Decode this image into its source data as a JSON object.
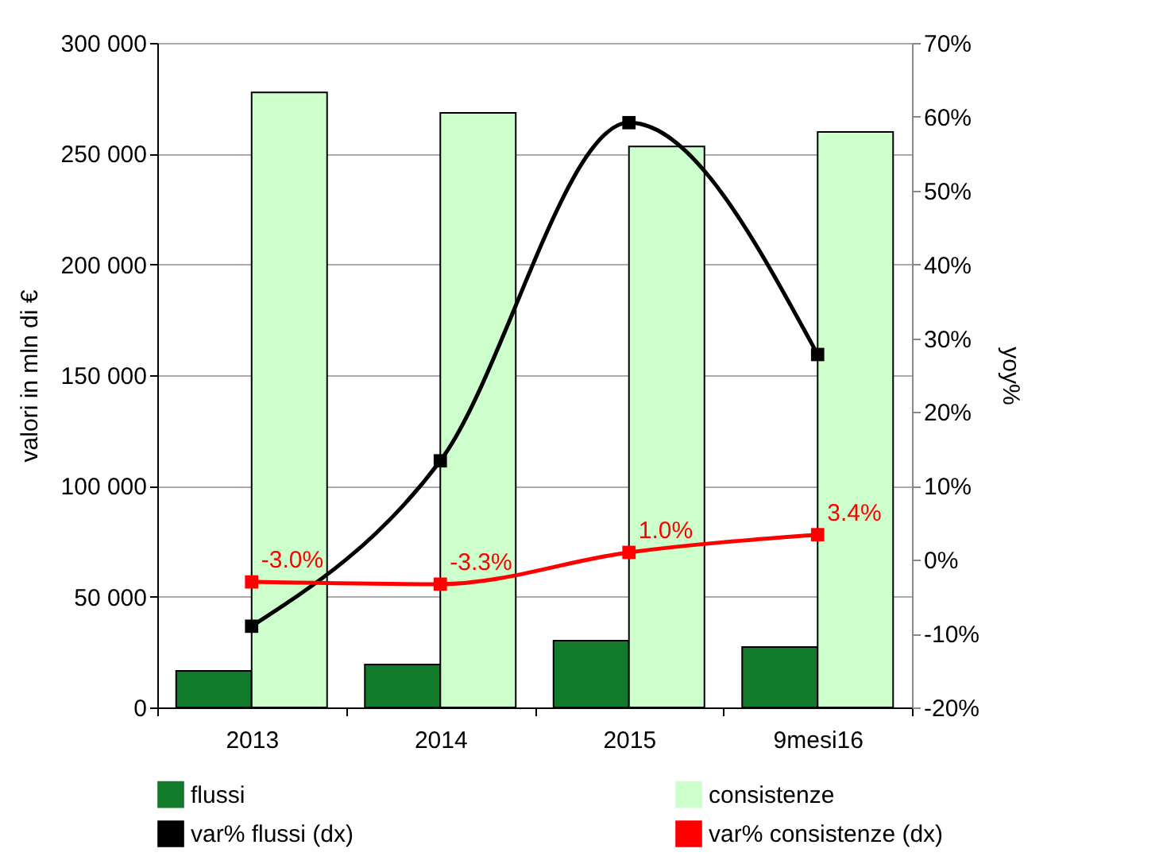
{
  "chart_data": {
    "type": "bar",
    "categories": [
      "2013",
      "2014",
      "2015",
      "9mesi16"
    ],
    "ylabel": "valori in mln di €",
    "y2label": "yoy%",
    "ylim": [
      0,
      300000
    ],
    "yticks": [
      {
        "value": 0,
        "label": "0"
      },
      {
        "value": 50000,
        "label": "50 000"
      },
      {
        "value": 100000,
        "label": "100 000"
      },
      {
        "value": 150000,
        "label": "150 000"
      },
      {
        "value": 200000,
        "label": "200 000"
      },
      {
        "value": 250000,
        "label": "250 000"
      },
      {
        "value": 300000,
        "label": "300 000"
      }
    ],
    "y2lim": [
      -20,
      70
    ],
    "y2ticks": [
      {
        "value": -20,
        "label": "-20%"
      },
      {
        "value": -10,
        "label": "-10%"
      },
      {
        "value": 0,
        "label": "0%"
      },
      {
        "value": 10,
        "label": "10%"
      },
      {
        "value": 20,
        "label": "20%"
      },
      {
        "value": 30,
        "label": "30%"
      },
      {
        "value": 40,
        "label": "40%"
      },
      {
        "value": 50,
        "label": "50%"
      },
      {
        "value": 60,
        "label": "60%"
      },
      {
        "value": 70,
        "label": "70%"
      }
    ],
    "grid": "y",
    "legend": "bottom",
    "marker": "square",
    "series": [
      {
        "name": "flussi",
        "type": "bar",
        "color": "#117a2b",
        "values": [
          16500,
          19400,
          30100,
          27300
        ]
      },
      {
        "name": "consistenze",
        "type": "bar",
        "color": "#ccffcc",
        "values": [
          277700,
          268400,
          253300,
          259800
        ]
      },
      {
        "name": "var% flussi (dx)",
        "type": "line",
        "axis": "y2",
        "color": "#000000",
        "values": [
          -9.0,
          13.4,
          59.2,
          27.8
        ]
      },
      {
        "name": "var% consistenze (dx)",
        "type": "line",
        "axis": "y2",
        "color": "#ff0000",
        "values": [
          -3.0,
          -3.3,
          1.0,
          3.4
        ],
        "value_labels": [
          "-3.0%",
          "-3.3%",
          "1.0%",
          "3.4%"
        ]
      }
    ]
  }
}
